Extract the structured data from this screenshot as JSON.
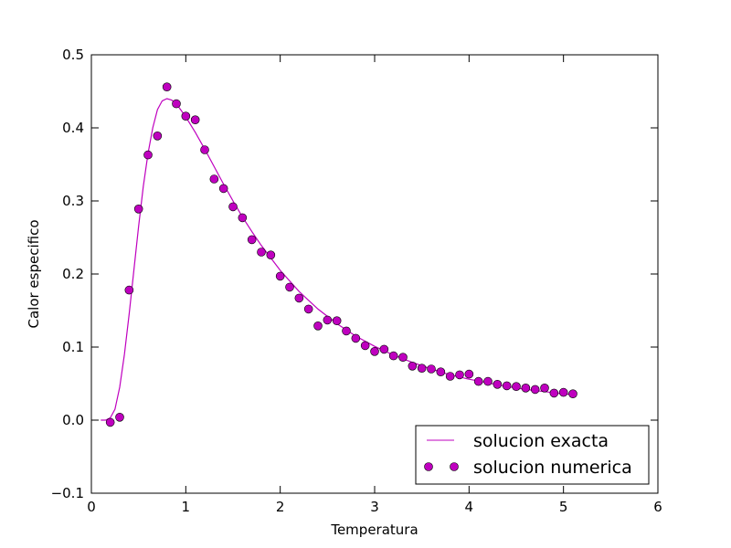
{
  "chart_data": {
    "type": "line",
    "title": "",
    "xlabel": "Temperatura",
    "ylabel": "Calor especifico",
    "xlim": [
      0,
      6
    ],
    "ylim": [
      -0.1,
      0.5
    ],
    "xticks": [
      0,
      1,
      2,
      3,
      4,
      5,
      6
    ],
    "xtick_labels": [
      "0",
      "1",
      "2",
      "3",
      "4",
      "5",
      "6"
    ],
    "yticks": [
      -0.1,
      0.0,
      0.1,
      0.2,
      0.3,
      0.4,
      0.5
    ],
    "ytick_labels": [
      "−0.1",
      "0.0",
      "0.1",
      "0.2",
      "0.3",
      "0.4",
      "0.5"
    ],
    "grid": false,
    "legend_position": "lower-right",
    "color": "#bf00bf",
    "series": [
      {
        "name": "solucion exacta",
        "kind": "line",
        "x": [
          0.1,
          0.15,
          0.2,
          0.25,
          0.3,
          0.35,
          0.4,
          0.45,
          0.5,
          0.55,
          0.6,
          0.65,
          0.7,
          0.75,
          0.8,
          0.85,
          0.9,
          1.0,
          1.1,
          1.2,
          1.3,
          1.4,
          1.5,
          1.6,
          1.7,
          1.8,
          1.9,
          2.0,
          2.2,
          2.4,
          2.6,
          2.8,
          3.0,
          3.2,
          3.4,
          3.6,
          3.8,
          4.0,
          4.2,
          4.4,
          4.6,
          4.8,
          5.0,
          5.1
        ],
        "y": [
          0.0,
          0.0,
          0.003,
          0.015,
          0.045,
          0.09,
          0.145,
          0.205,
          0.265,
          0.32,
          0.365,
          0.4,
          0.425,
          0.437,
          0.44,
          0.438,
          0.433,
          0.415,
          0.394,
          0.371,
          0.347,
          0.323,
          0.3,
          0.278,
          0.258,
          0.239,
          0.222,
          0.205,
          0.176,
          0.152,
          0.132,
          0.115,
          0.101,
          0.089,
          0.079,
          0.07,
          0.062,
          0.056,
          0.051,
          0.046,
          0.042,
          0.039,
          0.036,
          0.035
        ]
      },
      {
        "name": "solucion numerica",
        "kind": "scatter",
        "x": [
          0.2,
          0.3,
          0.4,
          0.5,
          0.6,
          0.7,
          0.8,
          0.9,
          1.0,
          1.1,
          1.2,
          1.3,
          1.4,
          1.5,
          1.6,
          1.7,
          1.8,
          1.9,
          2.0,
          2.1,
          2.2,
          2.3,
          2.4,
          2.5,
          2.6,
          2.7,
          2.8,
          2.9,
          3.0,
          3.1,
          3.2,
          3.3,
          3.4,
          3.5,
          3.6,
          3.7,
          3.8,
          3.9,
          4.0,
          4.1,
          4.2,
          4.3,
          4.4,
          4.5,
          4.6,
          4.7,
          4.8,
          4.9,
          5.0,
          5.1
        ],
        "y": [
          -0.003,
          0.004,
          0.178,
          0.289,
          0.363,
          0.389,
          0.456,
          0.433,
          0.416,
          0.411,
          0.37,
          0.33,
          0.317,
          0.292,
          0.277,
          0.247,
          0.23,
          0.226,
          0.197,
          0.182,
          0.167,
          0.152,
          0.129,
          0.137,
          0.136,
          0.122,
          0.112,
          0.102,
          0.094,
          0.097,
          0.088,
          0.086,
          0.074,
          0.071,
          0.07,
          0.066,
          0.06,
          0.062,
          0.063,
          0.053,
          0.053,
          0.049,
          0.047,
          0.046,
          0.044,
          0.042,
          0.044,
          0.037,
          0.038,
          0.036
        ]
      }
    ]
  }
}
